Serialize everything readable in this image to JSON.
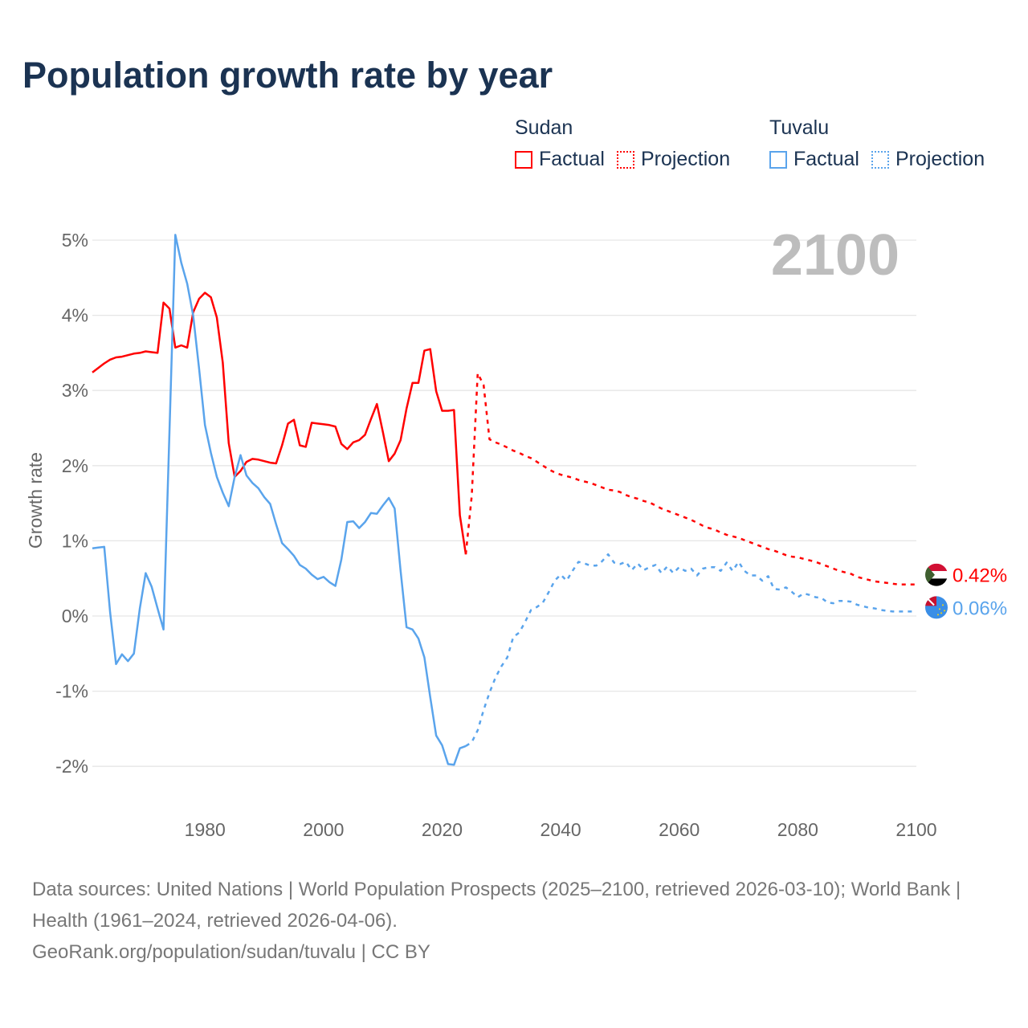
{
  "title": "Population growth rate by year",
  "legend": {
    "groups": [
      {
        "name": "Sudan",
        "factual": "Factual",
        "projection": "Projection",
        "color": "#ff0000"
      },
      {
        "name": "Tuvalu",
        "factual": "Factual",
        "projection": "Projection",
        "color": "#5aa4ec"
      }
    ]
  },
  "year_watermark": "2100",
  "footer": {
    "sources": "Data sources: United Nations | World Population Prospects (2025–2100, retrieved 2026-03-10); World Bank | Health (1961–2024, retrieved 2026-04-06).",
    "credit": "GeoRank.org/population/sudan/tuvalu | CC BY"
  },
  "chart_data": {
    "type": "line",
    "title": "Population growth rate by year",
    "xlabel": "",
    "ylabel": "Growth rate",
    "xlim": [
      1961,
      2100
    ],
    "ylim": [
      -2.3,
      5.2
    ],
    "x_ticks": [
      1980,
      2000,
      2020,
      2040,
      2060,
      2080,
      2100
    ],
    "x_tick_labels": [
      "1980",
      "2000",
      "2020",
      "2040",
      "2060",
      "2080",
      "2100"
    ],
    "y_ticks": [
      5,
      4,
      3,
      2,
      1,
      0,
      -1,
      -2
    ],
    "y_tick_labels": [
      "5%",
      "4%",
      "3%",
      "2%",
      "1%",
      "0%",
      "-1%",
      "-2%"
    ],
    "grid": true,
    "legend_position": "top-right",
    "series": [
      {
        "name": "Sudan Factual",
        "color": "#ff0000",
        "dash": false,
        "start": 1961,
        "values": [
          3.24,
          3.3,
          3.36,
          3.41,
          3.44,
          3.45,
          3.47,
          3.49,
          3.5,
          3.52,
          3.51,
          3.5,
          4.17,
          4.09,
          3.57,
          3.6,
          3.57,
          4.04,
          4.22,
          4.3,
          4.24,
          3.97,
          3.37,
          2.3,
          1.85,
          1.93,
          2.05,
          2.09,
          2.08,
          2.06,
          2.04,
          2.03,
          2.27,
          2.56,
          2.61,
          2.27,
          2.25,
          2.57,
          2.56,
          2.55,
          2.54,
          2.52,
          2.29,
          2.22,
          2.31,
          2.34,
          2.41,
          2.62,
          2.82,
          2.45,
          2.06,
          2.16,
          2.34,
          2.76,
          3.1,
          3.1,
          3.53,
          3.55,
          2.99,
          2.73,
          2.73,
          2.74,
          1.34,
          0.82
        ]
      },
      {
        "name": "Sudan Projection",
        "color": "#ff0000",
        "dash": true,
        "start": 2024,
        "values": [
          0.82,
          1.6,
          3.23,
          3.07,
          2.35,
          2.31,
          2.28,
          2.24,
          2.2,
          2.17,
          2.13,
          2.1,
          2.05,
          2.0,
          1.95,
          1.91,
          1.88,
          1.86,
          1.84,
          1.81,
          1.79,
          1.77,
          1.74,
          1.71,
          1.68,
          1.67,
          1.65,
          1.61,
          1.58,
          1.56,
          1.53,
          1.51,
          1.47,
          1.43,
          1.4,
          1.37,
          1.34,
          1.31,
          1.28,
          1.24,
          1.2,
          1.17,
          1.15,
          1.11,
          1.08,
          1.06,
          1.04,
          1.01,
          0.98,
          0.95,
          0.92,
          0.89,
          0.87,
          0.84,
          0.81,
          0.79,
          0.78,
          0.76,
          0.74,
          0.72,
          0.69,
          0.66,
          0.63,
          0.6,
          0.58,
          0.56,
          0.52,
          0.5,
          0.48,
          0.46,
          0.45,
          0.44,
          0.43,
          0.42,
          0.42,
          0.42,
          0.42
        ]
      },
      {
        "name": "Tuvalu Factual",
        "color": "#5aa4ec",
        "dash": false,
        "start": 1961,
        "values": [
          0.9,
          0.91,
          0.92,
          0.05,
          -0.64,
          -0.51,
          -0.6,
          -0.5,
          0.1,
          0.57,
          0.39,
          0.1,
          -0.18,
          2.45,
          5.07,
          4.7,
          4.42,
          4.0,
          3.29,
          2.54,
          2.17,
          1.85,
          1.64,
          1.46,
          1.85,
          2.14,
          1.87,
          1.77,
          1.7,
          1.58,
          1.49,
          1.22,
          0.97,
          0.89,
          0.8,
          0.68,
          0.63,
          0.55,
          0.49,
          0.52,
          0.45,
          0.4,
          0.75,
          1.25,
          1.26,
          1.17,
          1.25,
          1.37,
          1.36,
          1.47,
          1.57,
          1.43,
          0.6,
          -0.15,
          -0.18,
          -0.3,
          -0.55,
          -1.08,
          -1.59,
          -1.72,
          -1.97,
          -1.98,
          -1.76,
          -1.73
        ]
      },
      {
        "name": "Tuvalu Projection",
        "color": "#5aa4ec",
        "dash": true,
        "start": 2024,
        "values": [
          -1.73,
          -1.68,
          -1.52,
          -1.25,
          -1.02,
          -0.82,
          -0.67,
          -0.55,
          -0.28,
          -0.22,
          -0.08,
          0.08,
          0.12,
          0.18,
          0.32,
          0.47,
          0.55,
          0.47,
          0.6,
          0.72,
          0.7,
          0.67,
          0.67,
          0.73,
          0.82,
          0.71,
          0.69,
          0.72,
          0.61,
          0.7,
          0.61,
          0.65,
          0.68,
          0.57,
          0.66,
          0.57,
          0.65,
          0.6,
          0.63,
          0.54,
          0.63,
          0.65,
          0.65,
          0.6,
          0.71,
          0.6,
          0.72,
          0.6,
          0.54,
          0.54,
          0.47,
          0.53,
          0.36,
          0.35,
          0.38,
          0.32,
          0.25,
          0.3,
          0.28,
          0.25,
          0.24,
          0.18,
          0.17,
          0.2,
          0.2,
          0.19,
          0.15,
          0.13,
          0.11,
          0.1,
          0.08,
          0.07,
          0.06,
          0.06,
          0.06,
          0.06,
          0.06
        ]
      }
    ],
    "end_labels": [
      {
        "country": "Sudan",
        "value": 0.42,
        "label": "0.42%",
        "color": "#ff0000"
      },
      {
        "country": "Tuvalu",
        "value": 0.06,
        "label": "0.06%",
        "color": "#5aa4ec"
      }
    ]
  }
}
